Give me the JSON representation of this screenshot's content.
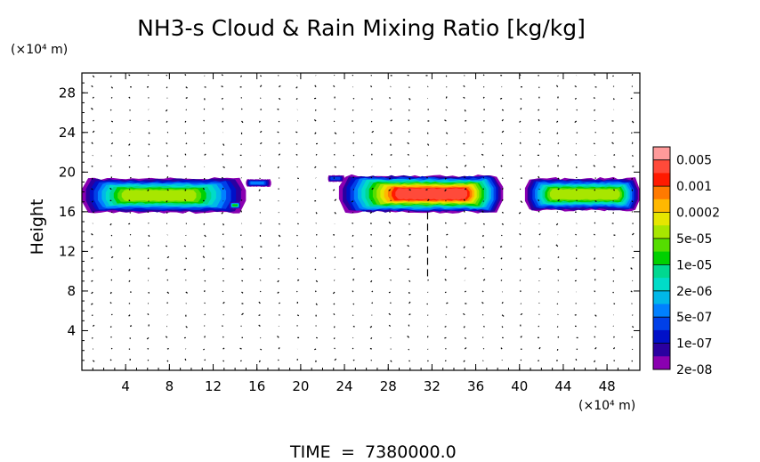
{
  "chart_data": {
    "type": "heatmap",
    "title": "NH3-s Cloud & Rain Mixing Ratio [kg/kg]",
    "ylabel": "Height",
    "y_unit": "(×10⁴ m)",
    "x_unit": "(×10⁴ m)",
    "xlim": [
      0,
      51
    ],
    "ylim": [
      0,
      30
    ],
    "x_ticks": [
      "4",
      "8",
      "12",
      "16",
      "20",
      "24",
      "28",
      "32",
      "36",
      "40",
      "44",
      "48"
    ],
    "x_tick_values": [
      4,
      8,
      12,
      16,
      20,
      24,
      28,
      32,
      36,
      40,
      44,
      48
    ],
    "y_ticks": [
      "4",
      "8",
      "12",
      "16",
      "20",
      "24",
      "28"
    ],
    "y_tick_values": [
      4,
      8,
      12,
      16,
      20,
      24,
      28
    ],
    "colorbar": {
      "labels": [
        "0.005",
        "0.001",
        "0.0002",
        "5e-05",
        "1e-05",
        "2e-06",
        "5e-07",
        "1e-07",
        "2e-08"
      ],
      "colors_top_to_bottom": [
        "#ff9a9a",
        "#ff4a3a",
        "#ff1a00",
        "#ff7a00",
        "#ffb800",
        "#e6e600",
        "#a8e600",
        "#55dd00",
        "#00d000",
        "#00d890",
        "#00dcc8",
        "#00b8e8",
        "#0080ff",
        "#0040e8",
        "#0010c8",
        "#2a00a0",
        "#8a00b0"
      ]
    },
    "cloud_regions": [
      {
        "x": [
          0,
          15
        ],
        "y": [
          15.8,
          19.5
        ],
        "core": [
          4,
          10
        ],
        "peak_level": 10
      },
      {
        "x": [
          13.5,
          14.5
        ],
        "y": [
          16.3,
          17.0
        ],
        "core": [
          13.8,
          14.2
        ],
        "peak_level": 8
      },
      {
        "x": [
          15,
          17.3
        ],
        "y": [
          18.5,
          19.3
        ],
        "core": [
          15.5,
          16.5
        ],
        "peak_level": 4
      },
      {
        "x": [
          22.5,
          24
        ],
        "y": [
          19.0,
          19.7
        ],
        "core": [
          22.8,
          23.5
        ],
        "peak_level": 3
      },
      {
        "x": [
          23.5,
          38.5
        ],
        "y": [
          15.8,
          19.8
        ],
        "core": [
          29,
          35
        ],
        "peak_level": 15
      },
      {
        "x": [
          40.5,
          51
        ],
        "y": [
          16.0,
          19.5
        ],
        "core": [
          43,
          49
        ],
        "peak_level": 10
      }
    ],
    "wind_field": "vector arrows",
    "time_label": "TIME",
    "time_equals": "=",
    "time_value": "7380000.0"
  }
}
